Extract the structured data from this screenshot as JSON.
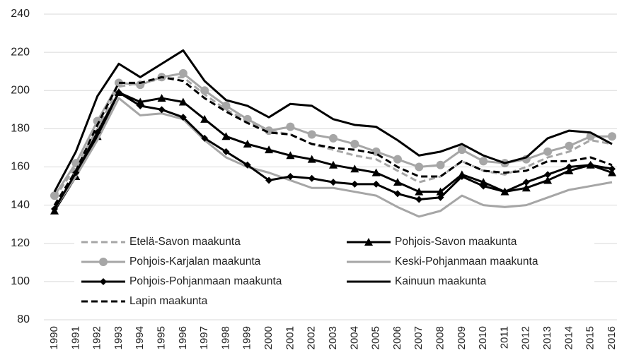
{
  "chart_data": {
    "type": "line",
    "categories": [
      "1990",
      "1991",
      "1992",
      "1993",
      "1994",
      "1995",
      "1996",
      "1997",
      "1998",
      "1999",
      "2000",
      "2001",
      "2002",
      "2003",
      "2004",
      "2005",
      "2006",
      "2007",
      "2008",
      "2009",
      "2010",
      "2011",
      "2012",
      "2013",
      "2014",
      "2015",
      "2016"
    ],
    "ylim": [
      80,
      240
    ],
    "yticks": [
      80,
      100,
      120,
      140,
      160,
      180,
      200,
      220,
      240
    ],
    "grid": true,
    "legend": "lower center",
    "series": [
      {
        "name": "Etelä-Savon maakunta",
        "color": "#a6a6a6",
        "dash": true,
        "marker": null,
        "values": [
          144,
          160,
          180,
          202,
          204,
          206,
          207,
          198,
          190,
          184,
          179,
          177,
          172,
          169,
          166,
          164,
          158,
          152,
          155,
          163,
          158,
          156,
          160,
          165,
          168,
          174,
          172
        ]
      },
      {
        "name": "Pohjois-Savon maakunta",
        "color": "#000000",
        "dash": false,
        "marker": "triangle",
        "values": [
          137,
          155,
          176,
          199,
          194,
          196,
          194,
          185,
          176,
          172,
          169,
          166,
          164,
          161,
          159,
          157,
          152,
          147,
          147,
          156,
          152,
          147,
          149,
          153,
          158,
          161,
          157
        ]
      },
      {
        "name": "Pohjois-Karjalan maakunta",
        "color": "#a6a6a6",
        "dash": false,
        "marker": "circle",
        "values": [
          145,
          162,
          184,
          204,
          203,
          207,
          209,
          200,
          192,
          185,
          179,
          181,
          177,
          175,
          172,
          168,
          164,
          160,
          161,
          169,
          163,
          162,
          164,
          168,
          171,
          176,
          176
        ]
      },
      {
        "name": "Keski-Pohjanmaan maakunta",
        "color": "#a6a6a6",
        "dash": false,
        "marker": null,
        "values": [
          138,
          155,
          174,
          196,
          187,
          188,
          185,
          174,
          165,
          160,
          157,
          153,
          149,
          149,
          147,
          145,
          139,
          134,
          137,
          145,
          140,
          139,
          140,
          144,
          148,
          150,
          152
        ]
      },
      {
        "name": "Pohjois-Pohjanmaan maakunta",
        "color": "#000000",
        "dash": false,
        "marker": "diamond",
        "values": [
          138,
          157,
          178,
          199,
          192,
          190,
          186,
          175,
          168,
          161,
          153,
          155,
          154,
          152,
          151,
          151,
          146,
          143,
          144,
          155,
          150,
          147,
          152,
          156,
          160,
          161,
          159
        ]
      },
      {
        "name": "Kainuun maakunta",
        "color": "#000000",
        "dash": false,
        "marker": null,
        "values": [
          147,
          168,
          197,
          214,
          207,
          214,
          221,
          205,
          195,
          192,
          186,
          193,
          192,
          185,
          182,
          181,
          174,
          166,
          168,
          172,
          166,
          162,
          165,
          175,
          179,
          178,
          172
        ]
      },
      {
        "name": "Lapin maakunta",
        "color": "#000000",
        "dash": true,
        "marker": null,
        "values": [
          140,
          158,
          182,
          204,
          204,
          207,
          205,
          196,
          189,
          183,
          178,
          177,
          172,
          170,
          169,
          167,
          160,
          155,
          155,
          163,
          158,
          157,
          158,
          163,
          163,
          165,
          161
        ]
      }
    ]
  }
}
